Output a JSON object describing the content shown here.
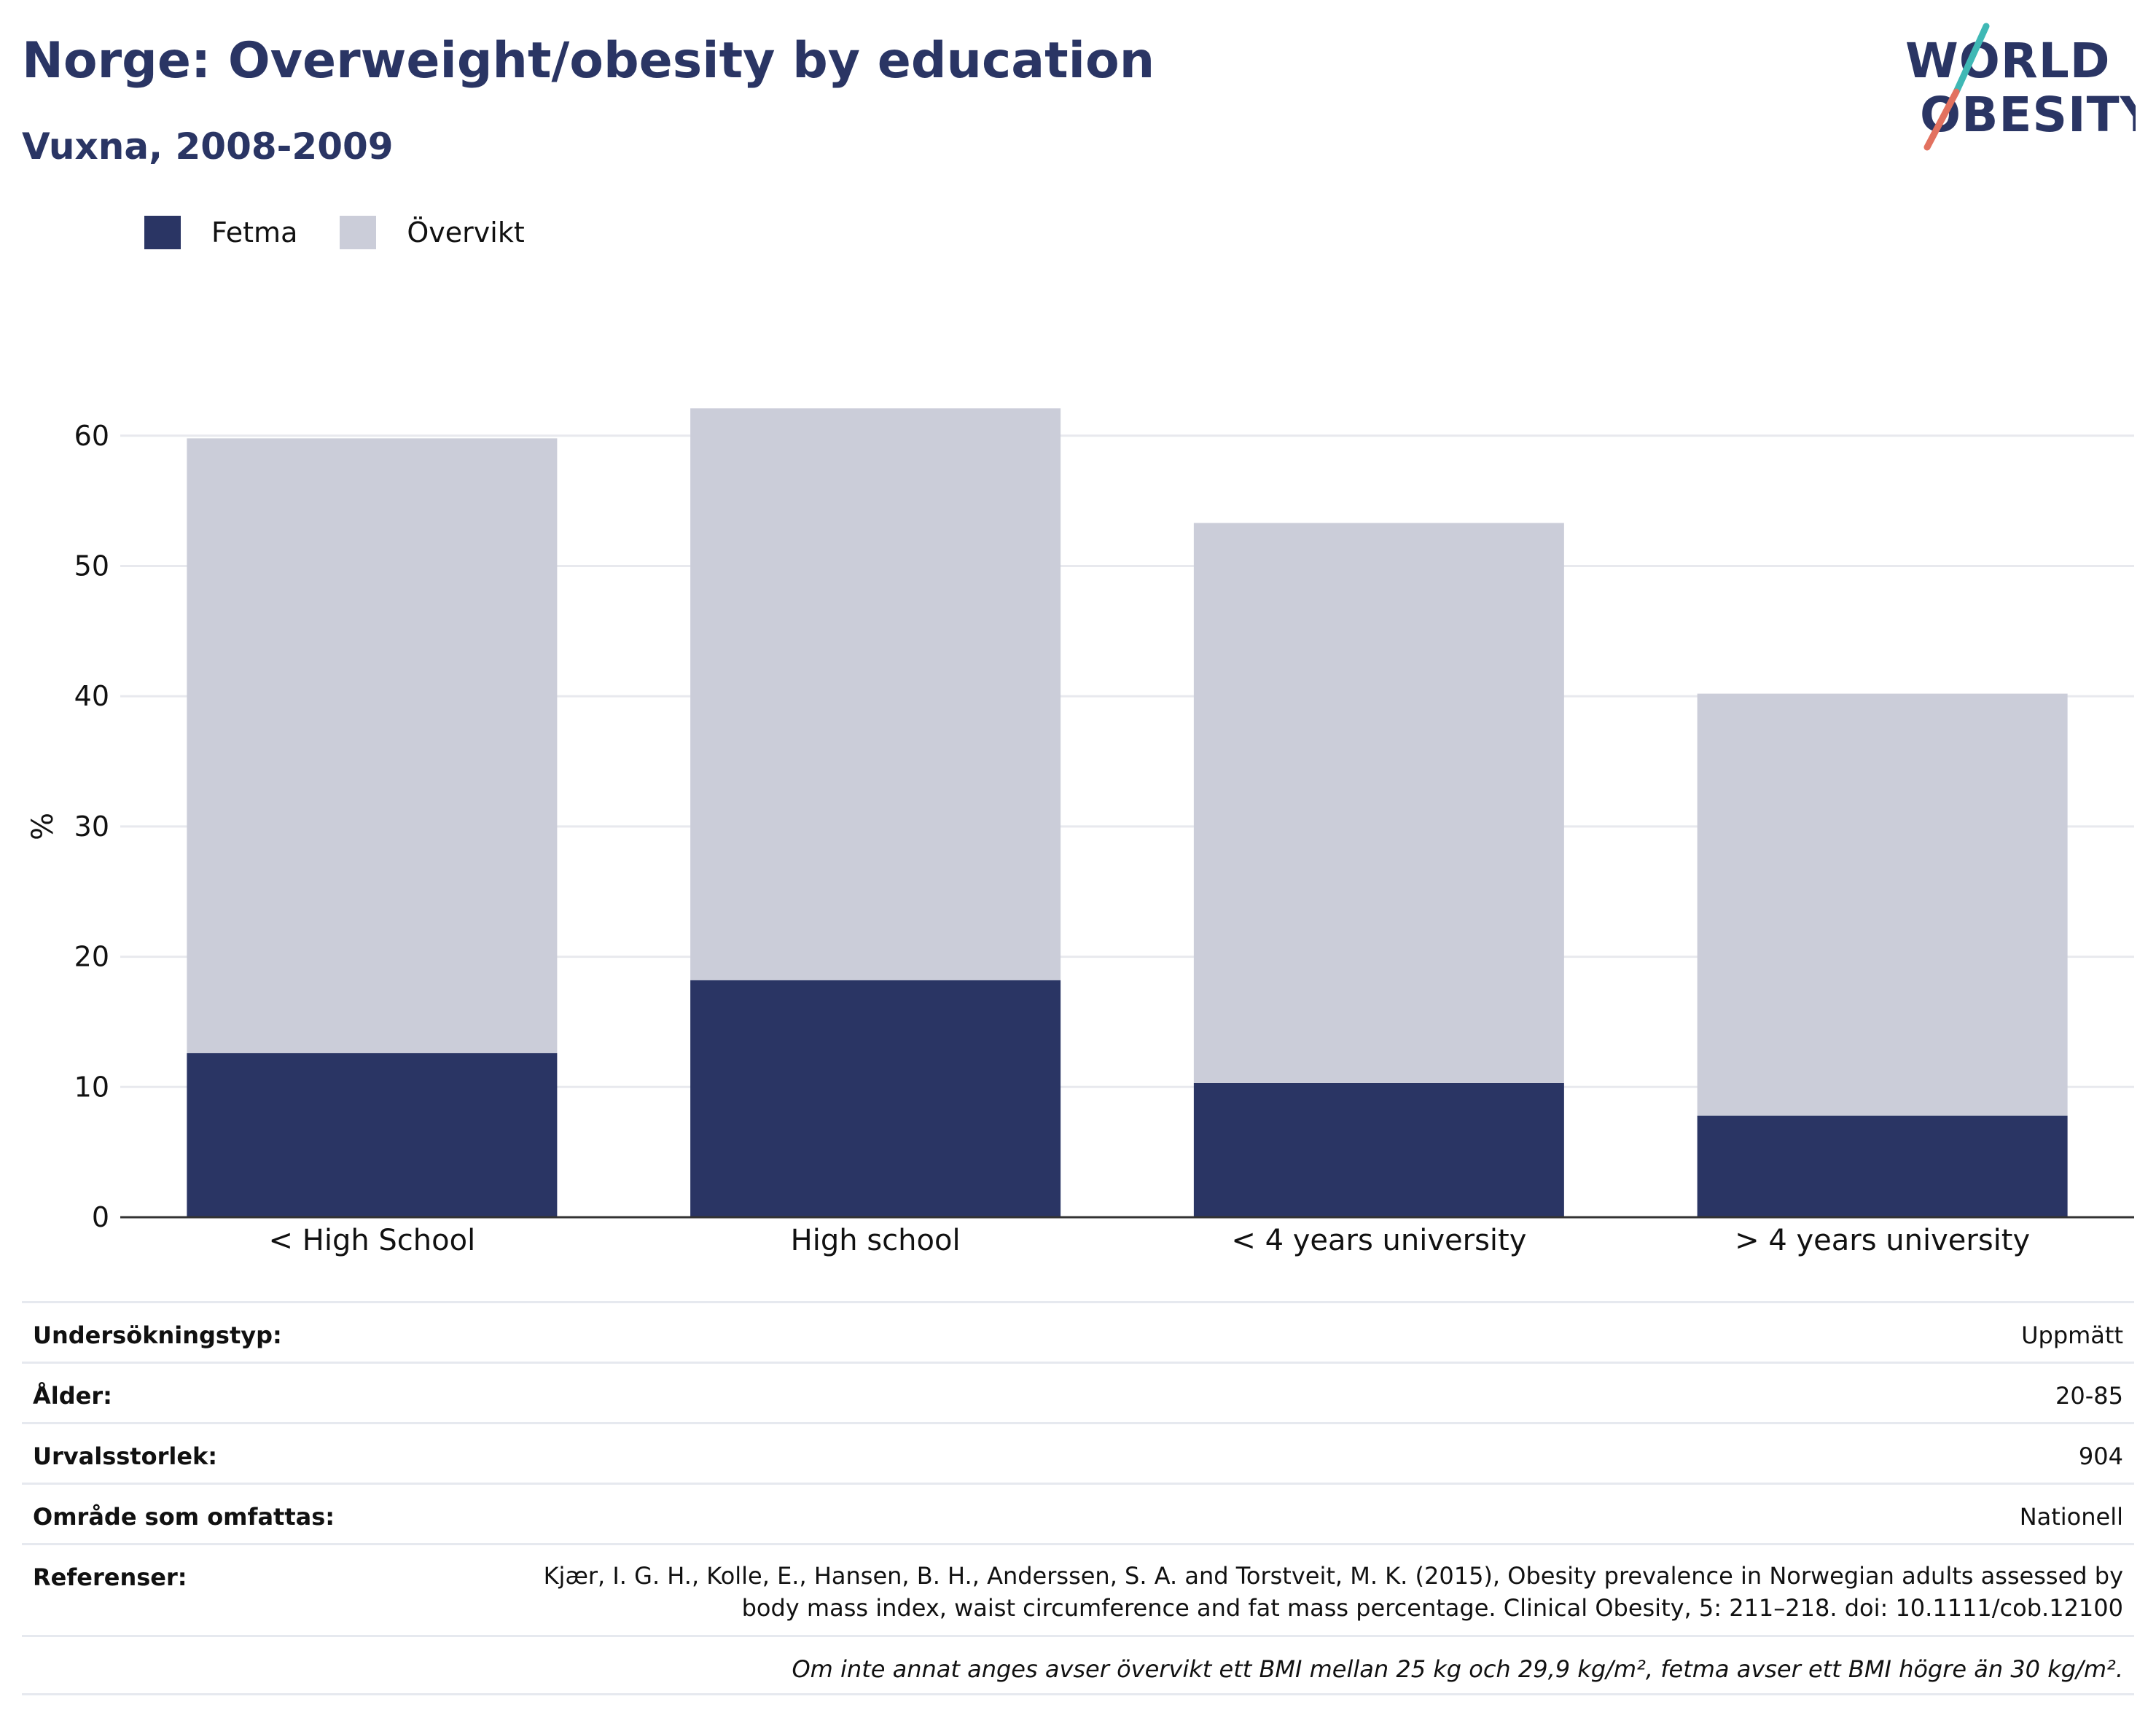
{
  "header": {
    "title": "Norge: Overweight/obesity by education",
    "subtitle": "Vuxna, 2008-2009"
  },
  "logo": {
    "line1": "WORLD",
    "line2": "OBESITY"
  },
  "colors": {
    "fetma": "#2a3564",
    "overvikt": "#cbcdd9",
    "title": "#2a3564",
    "logo_teal": "#3fb8b5",
    "logo_coral": "#e2715f"
  },
  "chart_data": {
    "type": "bar",
    "stacked": true,
    "categories": [
      "< High School",
      "High school",
      "< 4 years university",
      "> 4 years university"
    ],
    "series": [
      {
        "name": "Fetma",
        "values": [
          12.6,
          18.2,
          10.3,
          7.8
        ]
      },
      {
        "name": "Övervikt",
        "values": [
          47.2,
          43.9,
          43.0,
          32.4
        ]
      }
    ],
    "ylabel": "%",
    "ylim": [
      0,
      65
    ],
    "yticks": [
      0,
      10,
      20,
      30,
      40,
      50,
      60
    ],
    "grid": true,
    "legend_position": "top-left"
  },
  "info": {
    "rows": [
      {
        "key": "Undersökningstyp:",
        "value": "Uppmätt"
      },
      {
        "key": "Ålder:",
        "value": "20-85"
      },
      {
        "key": "Urvalsstorlek:",
        "value": "904"
      },
      {
        "key": "Område som omfattas:",
        "value": "Nationell"
      }
    ],
    "ref_key": "Referenser:",
    "ref_line1": "Kjær, I. G. H., Kolle, E., Hansen, B. H., Anderssen, S. A. and Torstveit, M. K. (2015), Obesity prevalence in Norwegian adults assessed by",
    "ref_line2": "body mass index, waist circumference and fat mass percentage. Clinical Obesity, 5: 211–218. doi: 10.1111/cob.12100",
    "note": "Om inte annat anges avser övervikt ett BMI mellan 25 kg och 29,9 kg/m², fetma avser ett BMI högre än 30 kg/m²."
  }
}
